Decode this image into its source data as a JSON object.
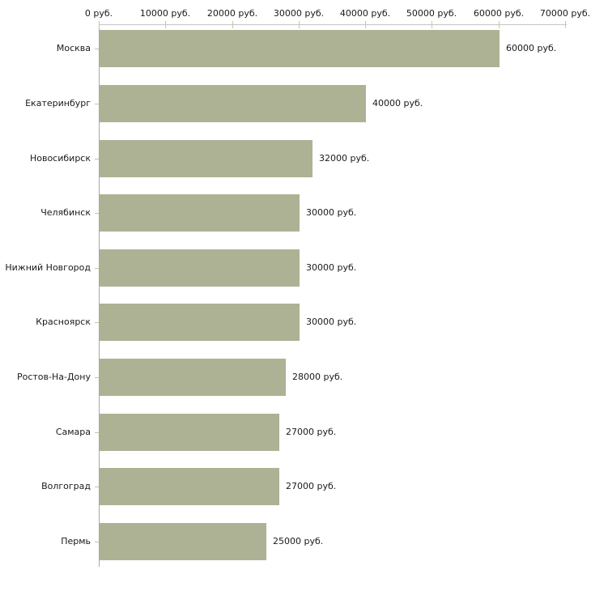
{
  "chart_data": {
    "type": "bar",
    "orientation": "horizontal",
    "title": "",
    "xlabel": "",
    "ylabel": "",
    "categories": [
      "Москва",
      "Екатеринбург",
      "Новосибирск",
      "Челябинск",
      "Нижний Новгород",
      "Красноярск",
      "Ростов-На-Дону",
      "Самара",
      "Волгоград",
      "Пермь"
    ],
    "values": [
      60000,
      40000,
      32000,
      30000,
      30000,
      30000,
      28000,
      27000,
      27000,
      25000
    ],
    "value_labels": [
      "60000 руб.",
      "40000 руб.",
      "32000 руб.",
      "30000 руб.",
      "30000 руб.",
      "30000 руб.",
      "28000 руб.",
      "27000 руб.",
      "27000 руб.",
      "25000 руб."
    ],
    "x_ticks": [
      0,
      10000,
      20000,
      30000,
      40000,
      50000,
      60000,
      70000
    ],
    "x_tick_labels": [
      "0 руб.",
      "10000 руб.",
      "20000 руб.",
      "30000 руб.",
      "40000 руб.",
      "50000 руб.",
      "60000 руб.",
      "70000 руб."
    ],
    "xlim": [
      0,
      70000
    ],
    "grid": false,
    "legend": "none",
    "axis_position": "top",
    "colors": {
      "bar": "#aeb295",
      "axis_line": "#c4c4c4",
      "y_axis_line": "#a8a8a8",
      "tick": "#cbc49e",
      "text": "#1a1a1a",
      "background": "#ffffff"
    }
  }
}
